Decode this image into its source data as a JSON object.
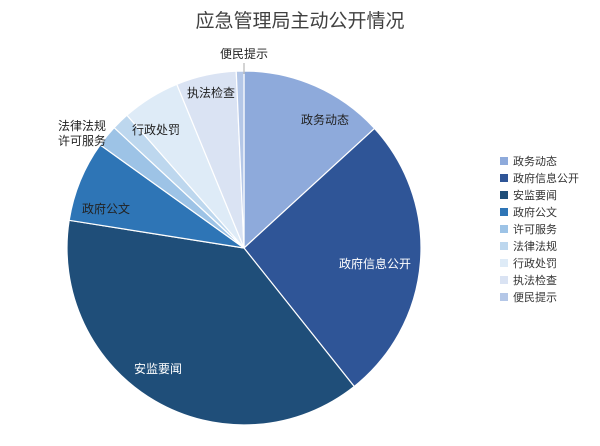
{
  "chart_data": {
    "type": "pie",
    "title": "应急管理局主动公开情况",
    "legend_position": "right",
    "slices": [
      {
        "label": "政务动态",
        "value": 13.2,
        "color": "#8eaadb",
        "label_lines": [
          "政务动态"
        ]
      },
      {
        "label": "政府信息公开",
        "value": 26.1,
        "color": "#2f5597",
        "label_lines": [
          "政府信息公开"
        ]
      },
      {
        "label": "安监要闻",
        "value": 38.2,
        "color": "#1f4e79",
        "label_lines": [
          "安监要闻"
        ]
      },
      {
        "label": "政府公文",
        "value": 7.4,
        "color": "#2e75b6",
        "label_lines": [
          "政府公文"
        ]
      },
      {
        "label": "许可服务",
        "value": 2.0,
        "color": "#9dc3e6",
        "label_lines": [
          "法律法规",
          "许可服务"
        ]
      },
      {
        "label": "法律法规",
        "value": 1.6,
        "color": "#bdd7ee",
        "label_lines": []
      },
      {
        "label": "行政处罚",
        "value": 5.3,
        "color": "#deebf7",
        "label_lines": [
          "行政处罚"
        ]
      },
      {
        "label": "执法检查",
        "value": 5.5,
        "color": "#dae3f3",
        "label_lines": [
          "执法检查"
        ]
      },
      {
        "label": "便民提示",
        "value": 0.7,
        "color": "#b4c7e7",
        "label_lines": [
          "便民提示"
        ]
      }
    ]
  }
}
